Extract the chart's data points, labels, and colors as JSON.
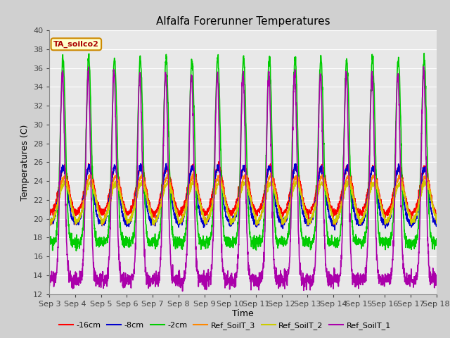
{
  "title": "Alfalfa Forerunner Temperatures",
  "xlabel": "Time",
  "ylabel": "Temperatures (C)",
  "ylim": [
    12,
    40
  ],
  "yticks": [
    12,
    14,
    16,
    18,
    20,
    22,
    24,
    26,
    28,
    30,
    32,
    34,
    36,
    38,
    40
  ],
  "n_days": 15,
  "xtick_labels": [
    "Sep 3",
    "Sep 4",
    "Sep 5",
    "Sep 6",
    "Sep 7",
    "Sep 8",
    "Sep 9",
    "Sep 10",
    "Sep 11",
    "Sep 12",
    "Sep 13",
    "Sep 14",
    "Sep 15",
    "Sep 16",
    "Sep 17",
    "Sep 18"
  ],
  "legend_label": "TA_soilco2",
  "series": [
    {
      "name": "-16cm",
      "color": "#ff0000"
    },
    {
      "name": "-8cm",
      "color": "#0000cc"
    },
    {
      "name": "-2cm",
      "color": "#00cc00"
    },
    {
      "name": "Ref_SoilT_3",
      "color": "#ff8800"
    },
    {
      "name": "Ref_SoilT_2",
      "color": "#cccc00"
    },
    {
      "name": "Ref_SoilT_1",
      "color": "#aa00aa"
    }
  ],
  "background_color": "#d0d0d0",
  "plot_bg_color": "#e8e8e8",
  "title_fontsize": 11,
  "axis_fontsize": 9,
  "tick_fontsize": 8,
  "legend_fontsize": 8,
  "linewidth": 1.2,
  "pts_per_day": 144
}
